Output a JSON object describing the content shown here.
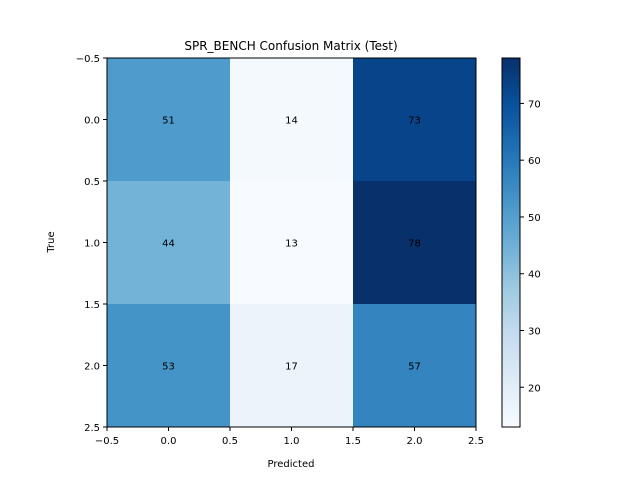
{
  "chart_data": {
    "type": "heatmap",
    "title": "SPR_BENCH Confusion Matrix (Test)",
    "xlabel": "Predicted",
    "ylabel": "True",
    "x_ticks": [
      "−0.5",
      "0.0",
      "0.5",
      "1.0",
      "1.5",
      "2.0",
      "2.5"
    ],
    "y_ticks": [
      "−0.5",
      "0.0",
      "0.5",
      "1.0",
      "1.5",
      "2.0",
      "2.5"
    ],
    "xlim": [
      -0.5,
      2.5
    ],
    "ylim": [
      2.5,
      -0.5
    ],
    "matrix": [
      [
        51,
        14,
        73
      ],
      [
        44,
        13,
        78
      ],
      [
        53,
        17,
        57
      ]
    ],
    "colormap": "Blues",
    "vmin": 13,
    "vmax": 78,
    "colorbar_ticks": [
      "20",
      "30",
      "40",
      "50",
      "60",
      "70"
    ],
    "grid": false
  }
}
